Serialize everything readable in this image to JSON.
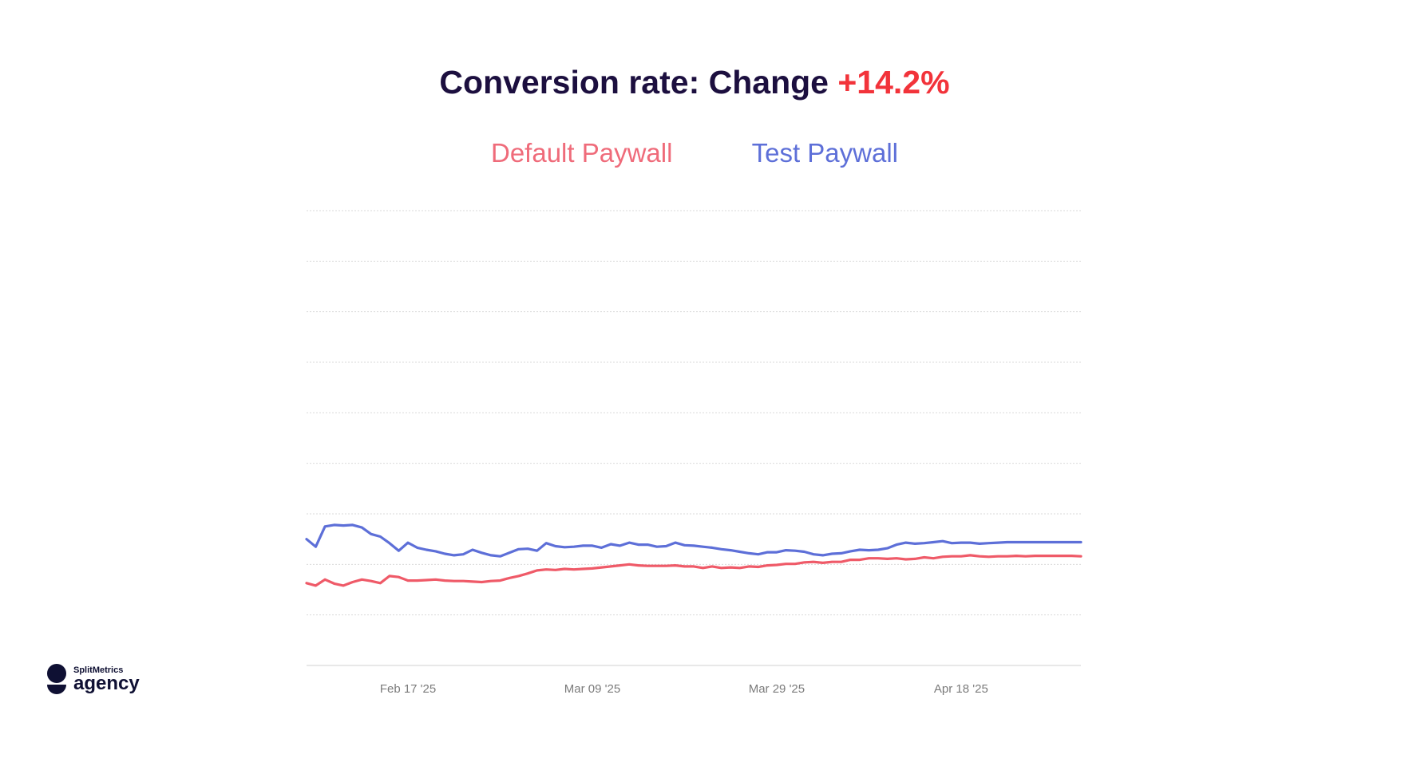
{
  "header": {
    "title_prefix": "Conversion rate: Change ",
    "title_change": "+14.2%"
  },
  "logo": {
    "brand_small": "SplitMetrics",
    "brand_big": "agency"
  },
  "colors": {
    "title": "#1c0f3f",
    "change": "#f2333a",
    "default_series": "#ef5a68",
    "test_series": "#5d6fd8",
    "grid": "#d9d9d9",
    "tick_label": "#7b7b7b"
  },
  "chart_data": {
    "type": "line",
    "title": "Conversion rate: Change +14.2%",
    "xlabel": "",
    "ylabel": "",
    "grid": true,
    "legend_position": "top-center",
    "x_tick_labels": [
      "Feb 17 '25",
      "Mar 09 '25",
      "Mar 29 '25",
      "Apr 18 '25"
    ],
    "x_tick_dates": [
      "2025-02-17",
      "2025-03-09",
      "2025-03-29",
      "2025-04-18"
    ],
    "x": [
      "2025-02-06",
      "2025-02-07",
      "2025-02-08",
      "2025-02-09",
      "2025-02-10",
      "2025-02-11",
      "2025-02-12",
      "2025-02-13",
      "2025-02-14",
      "2025-02-15",
      "2025-02-16",
      "2025-02-17",
      "2025-02-18",
      "2025-02-19",
      "2025-02-20",
      "2025-02-21",
      "2025-02-22",
      "2025-02-23",
      "2025-02-24",
      "2025-02-25",
      "2025-02-26",
      "2025-02-27",
      "2025-02-28",
      "2025-03-01",
      "2025-03-02",
      "2025-03-03",
      "2025-03-04",
      "2025-03-05",
      "2025-03-06",
      "2025-03-07",
      "2025-03-08",
      "2025-03-09",
      "2025-03-10",
      "2025-03-11",
      "2025-03-12",
      "2025-03-13",
      "2025-03-14",
      "2025-03-15",
      "2025-03-16",
      "2025-03-17",
      "2025-03-18",
      "2025-03-19",
      "2025-03-20",
      "2025-03-21",
      "2025-03-22",
      "2025-03-23",
      "2025-03-24",
      "2025-03-25",
      "2025-03-26",
      "2025-03-27",
      "2025-03-28",
      "2025-03-29",
      "2025-03-30",
      "2025-03-31",
      "2025-04-01",
      "2025-04-02",
      "2025-04-03",
      "2025-04-04",
      "2025-04-05",
      "2025-04-06",
      "2025-04-07",
      "2025-04-08",
      "2025-04-09",
      "2025-04-10",
      "2025-04-11",
      "2025-04-12",
      "2025-04-13",
      "2025-04-14",
      "2025-04-15",
      "2025-04-16",
      "2025-04-17",
      "2025-04-18",
      "2025-04-19",
      "2025-04-20",
      "2025-04-21",
      "2025-04-22",
      "2025-04-23",
      "2025-04-24",
      "2025-04-25",
      "2025-04-26",
      "2025-04-27",
      "2025-04-28",
      "2025-04-29",
      "2025-04-30",
      "2025-05-01"
    ],
    "ylim": [
      0,
      9
    ],
    "series": [
      {
        "name": "Default Paywall",
        "values": [
          1.63,
          1.58,
          1.7,
          1.62,
          1.58,
          1.65,
          1.7,
          1.67,
          1.63,
          1.77,
          1.75,
          1.68,
          1.68,
          1.69,
          1.7,
          1.68,
          1.67,
          1.67,
          1.66,
          1.65,
          1.67,
          1.68,
          1.73,
          1.77,
          1.82,
          1.88,
          1.9,
          1.89,
          1.91,
          1.9,
          1.91,
          1.92,
          1.94,
          1.96,
          1.98,
          2.0,
          1.98,
          1.97,
          1.97,
          1.97,
          1.98,
          1.96,
          1.96,
          1.93,
          1.96,
          1.93,
          1.94,
          1.93,
          1.96,
          1.95,
          1.98,
          1.99,
          2.01,
          2.01,
          2.04,
          2.05,
          2.03,
          2.05,
          2.05,
          2.09,
          2.09,
          2.12,
          2.12,
          2.11,
          2.12,
          2.1,
          2.11,
          2.14,
          2.12,
          2.15,
          2.16,
          2.16,
          2.18,
          2.16,
          2.15,
          2.16,
          2.16,
          2.17,
          2.16,
          2.17,
          2.17,
          2.17,
          2.17,
          2.17,
          2.16
        ]
      },
      {
        "name": "Test Paywall",
        "values": [
          2.5,
          2.35,
          2.75,
          2.78,
          2.77,
          2.78,
          2.73,
          2.6,
          2.55,
          2.42,
          2.27,
          2.43,
          2.33,
          2.29,
          2.26,
          2.21,
          2.18,
          2.2,
          2.29,
          2.23,
          2.18,
          2.16,
          2.23,
          2.3,
          2.31,
          2.27,
          2.42,
          2.36,
          2.34,
          2.35,
          2.37,
          2.37,
          2.33,
          2.4,
          2.37,
          2.43,
          2.39,
          2.39,
          2.35,
          2.36,
          2.43,
          2.38,
          2.37,
          2.35,
          2.33,
          2.3,
          2.28,
          2.25,
          2.22,
          2.2,
          2.24,
          2.24,
          2.28,
          2.27,
          2.25,
          2.2,
          2.18,
          2.21,
          2.22,
          2.26,
          2.29,
          2.28,
          2.29,
          2.32,
          2.39,
          2.43,
          2.41,
          2.42,
          2.44,
          2.46,
          2.42,
          2.43,
          2.43,
          2.41,
          2.42,
          2.43,
          2.44,
          2.44,
          2.44,
          2.44,
          2.44,
          2.44,
          2.44,
          2.44,
          2.44
        ]
      }
    ]
  }
}
